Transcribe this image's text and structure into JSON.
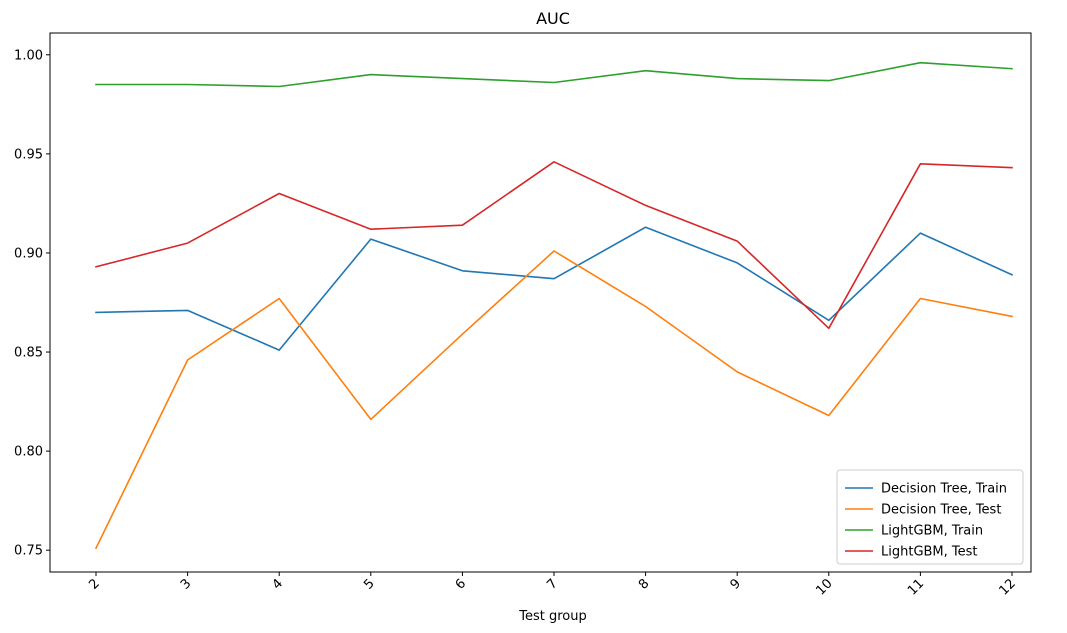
{
  "chart_data": {
    "type": "line",
    "title": "AUC",
    "xlabel": "Test group",
    "ylabel": "",
    "categories": [
      "2",
      "3",
      "4",
      "5",
      "6",
      "7",
      "8",
      "9",
      "10",
      "11",
      "12"
    ],
    "ylim": [
      0.739,
      1.011
    ],
    "yticks": [
      0.75,
      0.8,
      0.85,
      0.9,
      0.95,
      1.0
    ],
    "ytick_labels": [
      "0.75",
      "0.80",
      "0.85",
      "0.90",
      "0.95",
      "1.00"
    ],
    "grid": false,
    "legend_position": "lower-right",
    "series": [
      {
        "name": "Decision Tree, Train",
        "color": "#1f77b4",
        "values": [
          0.87,
          0.871,
          0.851,
          0.907,
          0.891,
          0.887,
          0.913,
          0.895,
          0.866,
          0.91,
          0.889
        ]
      },
      {
        "name": "Decision Tree, Test",
        "color": "#ff7f0e",
        "values": [
          0.751,
          0.846,
          0.877,
          0.816,
          0.859,
          0.901,
          0.873,
          0.84,
          0.818,
          0.877,
          0.868
        ]
      },
      {
        "name": "LightGBM, Train",
        "color": "#2ca02c",
        "values": [
          0.985,
          0.985,
          0.984,
          0.99,
          0.988,
          0.986,
          0.992,
          0.988,
          0.987,
          0.996,
          0.993
        ]
      },
      {
        "name": "LightGBM, Test",
        "color": "#d62728",
        "values": [
          0.893,
          0.905,
          0.93,
          0.912,
          0.914,
          0.946,
          0.924,
          0.906,
          0.862,
          0.945,
          0.943
        ]
      }
    ]
  }
}
